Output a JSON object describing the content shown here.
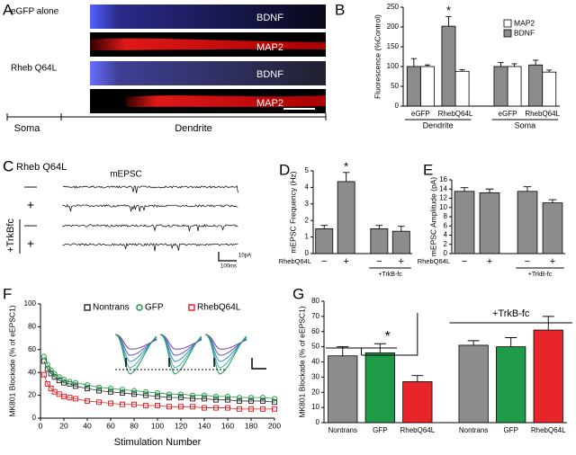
{
  "panel_labels": [
    "A",
    "B",
    "C",
    "D",
    "E",
    "F",
    "G"
  ],
  "panel_a": {
    "rows": [
      "eGFP alone",
      "Rheb Q64L"
    ],
    "channels": [
      "BDNF",
      "MAP2",
      "BDNF",
      "MAP2"
    ],
    "regions": [
      "Soma",
      "Dendrite"
    ]
  },
  "panel_c": {
    "row_title": "Rheb Q64L",
    "trace_title": "mEPSC",
    "signs": [
      "—",
      "+",
      "—",
      "+"
    ],
    "group_label": "+TrkBfc",
    "scale_y": "10pA",
    "scale_x": "100ms"
  },
  "chart_data": [
    {
      "type": "bar",
      "ylabel": "Fluorescence (%Control)",
      "categories": [
        "eGFP",
        "RhebQ64L",
        "eGFP",
        "RhebQ64L"
      ],
      "groups": [
        "Dendrite",
        "Soma"
      ],
      "series": [
        {
          "name": "MAP2",
          "color": "#ffffff",
          "values": [
            100,
            88,
            100,
            86
          ],
          "errors": [
            4,
            4,
            7,
            5
          ]
        },
        {
          "name": "BDNF",
          "color": "#8c8c8c",
          "values": [
            100,
            202,
            100,
            104
          ],
          "errors": [
            20,
            24,
            10,
            12
          ]
        }
      ],
      "ylim": [
        0,
        250
      ],
      "yticks": [
        0,
        50,
        100,
        150,
        200,
        250
      ],
      "legend": "upper right",
      "annotation": "*"
    },
    {
      "type": "bar",
      "ylabel": "mEPSC Frequency (Hz)",
      "xlabel": "RhebQ64L",
      "categories": [
        "−",
        "+",
        "−",
        "+"
      ],
      "group_label": "+TrkB-fc",
      "values": [
        1.5,
        4.35,
        1.5,
        1.35
      ],
      "errors": [
        0.2,
        0.55,
        0.2,
        0.3
      ],
      "color": "#8c8c8c",
      "ylim": [
        0,
        5
      ],
      "yticks": [
        0,
        1,
        2,
        3,
        4,
        5
      ],
      "annotation": "*"
    },
    {
      "type": "bar",
      "ylabel": "mEPSC Amplitude (pA)",
      "xlabel": "RhebQ64L",
      "categories": [
        "−",
        "+",
        "−",
        "+"
      ],
      "group_label": "+TrkB-fc",
      "values": [
        13.5,
        13.2,
        13.5,
        11
      ],
      "errors": [
        0.8,
        0.8,
        1.0,
        0.7
      ],
      "color": "#8c8c8c",
      "ylim": [
        0,
        16
      ],
      "yticks": [
        0,
        2,
        4,
        6,
        8,
        10,
        12,
        14,
        16
      ]
    },
    {
      "type": "scatter",
      "xlabel": "Stimulation Number",
      "ylabel": "MK801 Blockade (% of eEPSC1)",
      "x": [
        3,
        6,
        9,
        12,
        16,
        20,
        25,
        30,
        40,
        50,
        60,
        70,
        80,
        90,
        100,
        110,
        120,
        130,
        140,
        150,
        160,
        170,
        180,
        190,
        200
      ],
      "series": [
        {
          "name": "Nontrans",
          "color": "#333333",
          "marker": "square",
          "values": [
            50,
            43,
            39,
            36,
            33,
            31,
            30,
            28,
            26,
            24,
            23,
            22,
            21,
            20,
            19,
            18,
            18,
            17,
            17,
            16,
            16,
            15,
            15,
            15,
            14
          ]
        },
        {
          "name": "GFP",
          "color": "#1f9a48",
          "marker": "circle",
          "values": [
            54,
            47,
            42,
            39,
            36,
            34,
            32,
            31,
            29,
            27,
            26,
            25,
            24,
            23,
            22,
            21,
            21,
            20,
            20,
            19,
            19,
            18,
            18,
            18,
            17
          ]
        },
        {
          "name": "RhebQ64L",
          "color": "#e8262a",
          "marker": "square",
          "values": [
            38,
            30,
            26,
            23,
            21,
            19,
            18,
            17,
            15,
            14,
            13,
            12,
            12,
            11,
            11,
            10,
            10,
            10,
            9,
            9,
            9,
            8,
            8,
            8,
            8
          ]
        }
      ],
      "xlim": [
        0,
        200
      ],
      "xticks": [
        0,
        20,
        40,
        60,
        80,
        100,
        120,
        140,
        160,
        180,
        200
      ],
      "ylim": [
        0,
        100
      ],
      "yticks": [
        0,
        20,
        40,
        60,
        80,
        100
      ],
      "legend": "top"
    },
    {
      "type": "bar",
      "ylabel": "MK801 Blockade (% of eEPSC1)",
      "categories": [
        "Nontrans",
        "GFP",
        "RhebQ64L",
        "Nontrans",
        "GFP",
        "RhebQ64L"
      ],
      "group_label": "+TrkB-fc",
      "values": [
        44,
        46,
        27,
        51,
        50,
        61
      ],
      "errors": [
        6,
        6,
        4,
        3,
        6,
        9
      ],
      "colors": [
        "#8c8c8c",
        "#1f9a48",
        "#e8262a",
        "#8c8c8c",
        "#1f9a48",
        "#e8262a"
      ],
      "ylim": [
        0,
        80
      ],
      "yticks": [
        0,
        10,
        20,
        30,
        40,
        50,
        60,
        70,
        80
      ],
      "annotation": "*"
    }
  ]
}
